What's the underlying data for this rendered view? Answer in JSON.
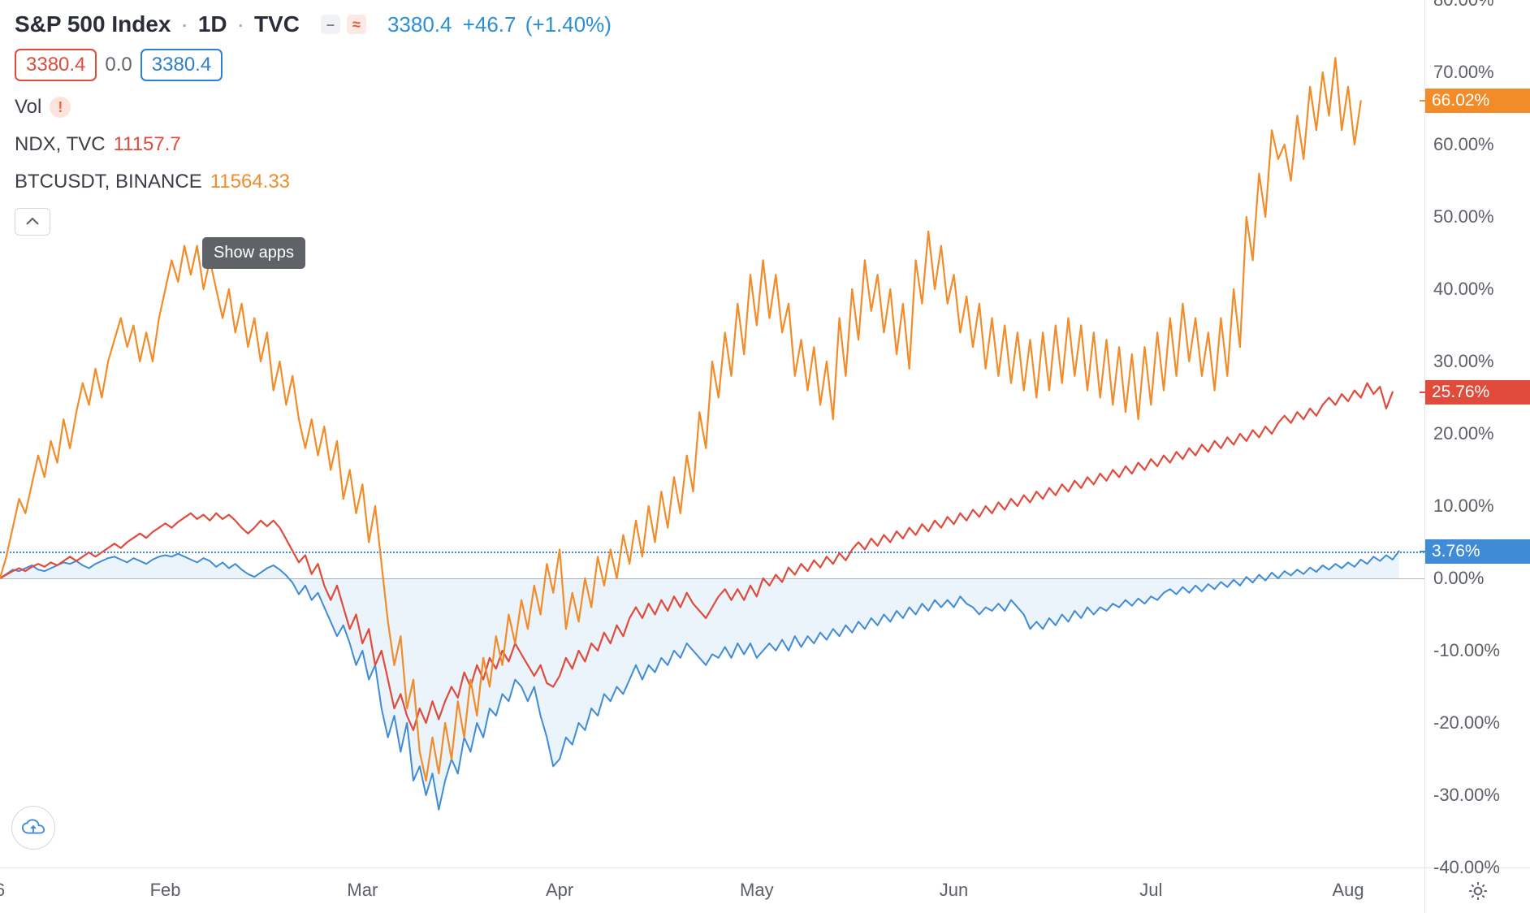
{
  "header": {
    "symbol_name": "S&P 500 Index",
    "interval": "1D",
    "exchange": "TVC",
    "pill_dash": "–",
    "pill_approx": "≈",
    "last": "3380.4",
    "change_abs": "+46.7",
    "change_pct": "(+1.40%)",
    "open_box": "3380.4",
    "mid_plain": "0.0",
    "close_box": "3380.4",
    "vol_label": "Vol",
    "vol_warn": "!",
    "compare1_sym": "NDX, TVC",
    "compare1_val": "11157.7",
    "compare2_sym": "BTCUSDT, BINANCE",
    "compare2_val": "11564.33"
  },
  "tooltip": {
    "text": "Show apps"
  },
  "chart": {
    "type": "line-compare-percent",
    "background_color": "#ffffff",
    "axis_line_color": "#e6e8ec",
    "zero_line_color": "#b5b8bd",
    "dashed_ref_color": "#3f8bd6",
    "tick_label_color": "#5b5f67",
    "tick_fontsize": 22,
    "x_labels": [
      "6",
      "Feb",
      "Mar",
      "Apr",
      "May",
      "Jun",
      "Jul",
      "Aug"
    ],
    "x_range": [
      0,
      224
    ],
    "x_tick_values": [
      0,
      26,
      57,
      88,
      119,
      150,
      181,
      212
    ],
    "y_range": [
      -40,
      80
    ],
    "y_ticks": [
      -40,
      -30,
      -20,
      -10,
      0,
      10,
      20,
      30,
      40,
      50,
      60,
      70,
      80
    ],
    "y_tick_labels": [
      "-40.00%",
      "-30.00%",
      "-20.00%",
      "-10.00%",
      "0.00%",
      "10.00%",
      "20.00%",
      "30.00%",
      "40.00%",
      "50.00%",
      "60.00%",
      "70.00%",
      "80.00%"
    ],
    "badges": [
      {
        "value": 66.02,
        "label": "66.02%",
        "bg": "#f28c28"
      },
      {
        "value": 25.76,
        "label": "25.76%",
        "bg": "#e04b3c"
      },
      {
        "value": 3.76,
        "label": "3.76%",
        "bg": "#3f8bd6"
      }
    ],
    "series": [
      {
        "name": "SPX",
        "color": "#3f8bd6",
        "line_width": 2,
        "fill_to_zero": true,
        "fill_color": "#3f8bd6",
        "fill_opacity": 0.1,
        "data": [
          0,
          0.6,
          1.2,
          1.0,
          1.4,
          1.8,
          1.2,
          1.0,
          1.4,
          1.8,
          2.2,
          2.0,
          2.4,
          1.8,
          1.4,
          2.0,
          2.4,
          2.8,
          3.0,
          2.6,
          2.2,
          2.8,
          2.4,
          2.0,
          2.6,
          3.0,
          3.2,
          3.0,
          3.4,
          3.0,
          2.6,
          2.2,
          2.8,
          2.4,
          1.6,
          2.2,
          1.4,
          2.0,
          1.2,
          0.6,
          0.2,
          0.8,
          1.4,
          1.8,
          1.2,
          0.4,
          -0.6,
          -2.2,
          -1.0,
          -3.0,
          -2.0,
          -4.0,
          -6.0,
          -8.0,
          -6.5,
          -9.0,
          -12.0,
          -10.0,
          -14.0,
          -12.0,
          -18.0,
          -22.0,
          -19.0,
          -24.0,
          -20.0,
          -28.0,
          -26.0,
          -30.0,
          -27.0,
          -32.0,
          -28.0,
          -25.0,
          -27.0,
          -22.0,
          -24.0,
          -20.0,
          -22.0,
          -18.0,
          -19.0,
          -16.0,
          -17.0,
          -14.0,
          -15.0,
          -17.0,
          -15.0,
          -19.0,
          -22.0,
          -26.0,
          -25.0,
          -22.0,
          -23.0,
          -20.0,
          -21.0,
          -18.0,
          -19.0,
          -16.0,
          -17.0,
          -15.0,
          -16.0,
          -14.0,
          -12.0,
          -14.0,
          -12.0,
          -13.0,
          -11.0,
          -12.0,
          -10.0,
          -11.0,
          -9.0,
          -10.0,
          -11.0,
          -12.0,
          -10.5,
          -11.0,
          -9.5,
          -11.0,
          -9.0,
          -10.5,
          -9.0,
          -11.0,
          -10.0,
          -9.0,
          -10.0,
          -8.5,
          -10.0,
          -8.0,
          -9.5,
          -8.0,
          -9.0,
          -7.5,
          -8.5,
          -7.0,
          -8.0,
          -6.5,
          -7.5,
          -6.0,
          -7.0,
          -5.5,
          -6.5,
          -5.0,
          -6.0,
          -4.5,
          -5.5,
          -4.0,
          -5.0,
          -3.5,
          -4.5,
          -3.0,
          -4.0,
          -3.0,
          -4.0,
          -2.5,
          -3.5,
          -4.0,
          -5.0,
          -4.0,
          -4.5,
          -3.5,
          -4.5,
          -3.0,
          -4.0,
          -5.0,
          -7.0,
          -6.0,
          -7.0,
          -5.5,
          -6.5,
          -5.0,
          -6.0,
          -4.5,
          -5.5,
          -4.0,
          -5.0,
          -4.0,
          -4.5,
          -3.5,
          -4.0,
          -3.0,
          -3.8,
          -2.8,
          -3.5,
          -2.5,
          -3.0,
          -2.0,
          -1.5,
          -2.2,
          -1.2,
          -2.0,
          -1.0,
          -1.8,
          -0.8,
          -1.5,
          -0.5,
          -1.2,
          -0.2,
          -1.0,
          0.2,
          -0.6,
          0.5,
          -0.3,
          0.8,
          0.0,
          1.0,
          0.4,
          1.2,
          0.6,
          1.5,
          0.9,
          1.8,
          1.2,
          2.0,
          1.4,
          2.2,
          1.6,
          2.6,
          2.0,
          3.0,
          2.4,
          3.2,
          2.6,
          3.76
        ]
      },
      {
        "name": "NDX",
        "color": "#e04b3c",
        "line_width": 2.2,
        "fill_to_zero": false,
        "data": [
          0,
          0.5,
          1.0,
          1.4,
          1.0,
          1.6,
          2.0,
          1.6,
          2.2,
          1.8,
          2.4,
          3.0,
          2.4,
          3.0,
          3.6,
          3.0,
          3.6,
          4.2,
          4.8,
          4.2,
          5.0,
          5.6,
          6.2,
          5.6,
          6.4,
          7.0,
          7.6,
          7.0,
          7.8,
          8.4,
          9.0,
          8.2,
          8.8,
          8.0,
          9.0,
          8.2,
          8.8,
          8.0,
          7.0,
          6.2,
          7.0,
          8.0,
          7.2,
          8.0,
          7.0,
          5.4,
          3.8,
          2.2,
          3.2,
          0.6,
          2.0,
          -1.0,
          -3.0,
          -1.0,
          -4.0,
          -7.0,
          -5.0,
          -9.0,
          -7.0,
          -12.0,
          -10.0,
          -14.0,
          -18.0,
          -16.0,
          -19.0,
          -21.0,
          -18.0,
          -20.0,
          -17.0,
          -19.5,
          -17.0,
          -15.0,
          -16.5,
          -13.0,
          -15.0,
          -12.0,
          -14.0,
          -11.0,
          -12.5,
          -10.0,
          -11.5,
          -9.0,
          -10.5,
          -12.0,
          -13.5,
          -12.0,
          -14.5,
          -15.0,
          -13.5,
          -11.0,
          -12.5,
          -10.0,
          -11.5,
          -9.0,
          -10.0,
          -7.5,
          -9.0,
          -6.5,
          -8.0,
          -5.5,
          -4.0,
          -5.5,
          -3.5,
          -5.0,
          -3.0,
          -4.5,
          -2.5,
          -4.0,
          -2.0,
          -3.5,
          -4.5,
          -5.5,
          -4.0,
          -2.5,
          -1.5,
          -3.0,
          -1.5,
          -3.0,
          -1.0,
          -2.5,
          0.0,
          -1.0,
          0.5,
          -0.5,
          1.5,
          0.5,
          2.0,
          1.0,
          2.5,
          1.5,
          3.0,
          2.0,
          3.5,
          2.5,
          4.0,
          5.0,
          4.0,
          5.5,
          4.5,
          6.0,
          5.0,
          6.5,
          5.5,
          7.0,
          6.0,
          7.5,
          6.5,
          8.0,
          7.0,
          8.5,
          7.5,
          9.0,
          8.0,
          9.5,
          8.5,
          10.0,
          9.0,
          10.5,
          9.5,
          11.0,
          10.0,
          11.5,
          10.5,
          12.0,
          11.0,
          12.5,
          11.5,
          13.0,
          12.0,
          13.5,
          12.5,
          14.0,
          13.0,
          14.5,
          13.5,
          15.0,
          14.0,
          15.5,
          14.5,
          16.0,
          15.0,
          16.5,
          15.5,
          17.0,
          16.0,
          17.5,
          16.5,
          18.0,
          17.0,
          18.5,
          17.5,
          19.0,
          18.0,
          19.5,
          18.5,
          20.0,
          19.0,
          20.5,
          19.5,
          21.0,
          20.0,
          21.5,
          22.5,
          21.5,
          23.0,
          22.0,
          23.5,
          22.5,
          24.0,
          25.0,
          24.0,
          25.5,
          24.5,
          26.0,
          25.0,
          27.0,
          25.5,
          26.5,
          23.5,
          25.76
        ]
      },
      {
        "name": "BTCUSDT",
        "color": "#f28c28",
        "line_width": 2.2,
        "fill_to_zero": false,
        "data": [
          0,
          3,
          7,
          11,
          9,
          13,
          17,
          14,
          19,
          16,
          22,
          18,
          23,
          27,
          24,
          29,
          25,
          30,
          33,
          36,
          32,
          35,
          30,
          34,
          30,
          36,
          40,
          44,
          41,
          46,
          42,
          46,
          40,
          44,
          40,
          36,
          40,
          34,
          38,
          32,
          36,
          30,
          34,
          26,
          30,
          24,
          28,
          22,
          18,
          22,
          17,
          21,
          15,
          19,
          11,
          15,
          9,
          13,
          5,
          10,
          2,
          -6,
          -12,
          -8,
          -18,
          -14,
          -24,
          -28,
          -22,
          -27,
          -20,
          -25,
          -17,
          -22,
          -14,
          -19,
          -11,
          -15,
          -8,
          -12,
          -5,
          -9,
          -3,
          -7,
          -1,
          -5,
          2,
          -2,
          4,
          -7,
          -2,
          -6,
          0,
          -4,
          3,
          -1,
          4,
          0,
          6,
          2,
          8,
          3,
          10,
          5,
          12,
          7,
          14,
          9,
          17,
          12,
          23,
          18,
          30,
          25,
          34,
          28,
          38,
          31,
          42,
          35,
          44,
          36,
          42,
          34,
          38,
          28,
          33,
          26,
          32,
          24,
          30,
          22,
          36,
          28,
          40,
          33,
          44,
          37,
          42,
          34,
          40,
          31,
          38,
          29,
          44,
          38,
          48,
          40,
          46,
          38,
          42,
          34,
          39,
          32,
          38,
          29,
          36,
          28,
          35,
          27,
          34,
          26,
          33,
          25,
          34,
          26,
          35,
          27,
          36,
          28,
          35,
          26,
          34,
          25,
          33,
          24,
          32,
          23,
          31,
          22,
          32,
          24,
          34,
          26,
          36,
          28,
          38,
          30,
          36,
          28,
          34,
          26,
          36,
          28,
          40,
          32,
          50,
          44,
          56,
          50,
          62,
          58,
          60,
          55,
          64,
          58,
          68,
          62,
          70,
          64,
          72,
          62,
          68,
          60,
          66.02
        ]
      }
    ]
  }
}
